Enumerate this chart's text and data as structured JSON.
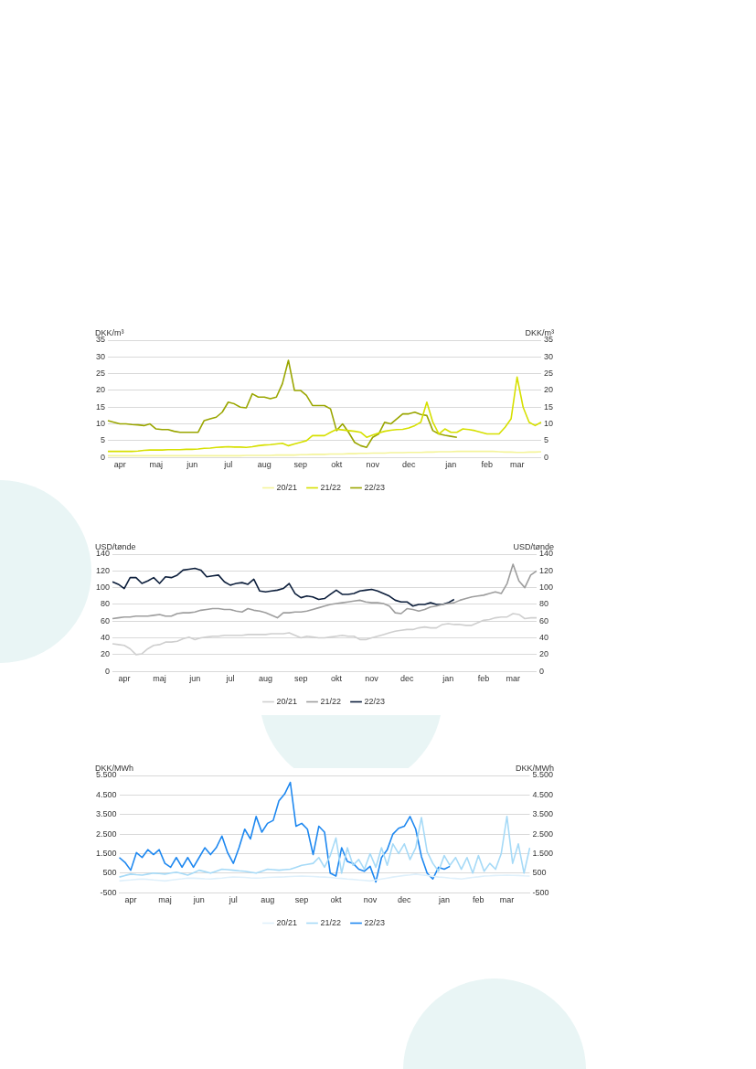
{
  "chart_data": [
    {
      "type": "line",
      "ylabel": "DKK/m³",
      "y2label": "DKK/m³",
      "categories": [
        null,
        null,
        "apr",
        null,
        null,
        null,
        null,
        null,
        "maj",
        null,
        null,
        null,
        null,
        null,
        "jun",
        null,
        null,
        null,
        null,
        null,
        "jul",
        null,
        null,
        null,
        null,
        null,
        "aug",
        null,
        null,
        null,
        null,
        null,
        "sep",
        null,
        null,
        null,
        null,
        null,
        "okt",
        null,
        null,
        null,
        null,
        null,
        "nov",
        null,
        null,
        null,
        null,
        null,
        "dec",
        null,
        null,
        null,
        null,
        null,
        null,
        "jan",
        null,
        null,
        null,
        null,
        null,
        "feb",
        null,
        null,
        null,
        null,
        "mar",
        null,
        null,
        null,
        null
      ],
      "ylim": [
        0,
        35
      ],
      "yticks": [
        0,
        5,
        10,
        15,
        20,
        25,
        30,
        35
      ],
      "y2lim": [
        0,
        35
      ],
      "y2ticks": [
        0,
        5,
        10,
        15,
        20,
        25,
        30,
        35
      ],
      "grid": "y",
      "legend": "bottom",
      "marker": "none",
      "line_style": "solid",
      "series": [
        {
          "name": "20/21",
          "color": "#f4f49a",
          "values": [
            0.5,
            0.5,
            0.5,
            0.5,
            0.5,
            0.5,
            0.5,
            0.5,
            0.5,
            0.5,
            0.5,
            0.5,
            0.5,
            0.5,
            0.5,
            0.5,
            0.5,
            0.5,
            0.5,
            0.5,
            0.5,
            0.5,
            0.5,
            0.6,
            0.6,
            0.6,
            0.6,
            0.6,
            0.7,
            0.7,
            0.7,
            0.7,
            0.8,
            0.8,
            0.9,
            0.9,
            0.9,
            1,
            1,
            1,
            1.1,
            1.1,
            1.2,
            1.2,
            1.3,
            1.3,
            1.3,
            1.4,
            1.4,
            1.4,
            1.5,
            1.5,
            1.5,
            1.6,
            1.6,
            1.7,
            1.7,
            1.7,
            1.8,
            1.8,
            1.8,
            1.8,
            1.8,
            1.8,
            1.8,
            1.7,
            1.6,
            1.6,
            1.5,
            1.5,
            1.6,
            1.6,
            1.7
          ]
        },
        {
          "name": "21/22",
          "color": "#d6e000",
          "values": [
            1.8,
            1.8,
            1.8,
            1.8,
            1.8,
            1.9,
            2.1,
            2.2,
            2.2,
            2.2,
            2.3,
            2.3,
            2.3,
            2.4,
            2.4,
            2.5,
            2.7,
            2.8,
            3,
            3.1,
            3.2,
            3.1,
            3.1,
            3,
            3.2,
            3.5,
            3.7,
            3.8,
            4,
            4.2,
            3.5,
            4,
            4.5,
            5,
            6.5,
            6.5,
            6.5,
            7.5,
            8.4,
            8.2,
            8,
            7.8,
            7.5,
            6,
            6.7,
            7.3,
            7.8,
            8.1,
            8.3,
            8.4,
            8.8,
            9.5,
            10.5,
            16.5,
            10.5,
            7,
            8.5,
            7.5,
            7.5,
            8.5,
            8.3,
            8,
            7.5,
            7,
            7,
            7,
            9,
            11.5,
            24,
            15,
            10.5,
            9.5,
            10.5
          ]
        },
        {
          "name": "22/23",
          "color": "#9aa600",
          "values": [
            11,
            10.5,
            10,
            10,
            9.8,
            9.7,
            9.5,
            10,
            8.5,
            8.3,
            8.3,
            7.8,
            7.5,
            7.5,
            7.5,
            7.5,
            11,
            11.5,
            12,
            13.5,
            16.5,
            16,
            15,
            14.8,
            19,
            18,
            18,
            17.5,
            18,
            22,
            29,
            20,
            20,
            18.5,
            15.5,
            15.5,
            15.5,
            14.5,
            8,
            10,
            7.5,
            4.5,
            3.5,
            3,
            6,
            7,
            10.5,
            10,
            11.5,
            13,
            13,
            13.5,
            12.8,
            12.5,
            8,
            7,
            6.6,
            6.3,
            6,
            null,
            null,
            null,
            null,
            null,
            null,
            null,
            null,
            null,
            null,
            null,
            null,
            null,
            null
          ]
        }
      ]
    },
    {
      "type": "line",
      "ylabel": "USD/tønde",
      "y2label": "USD/tønde",
      "categories": [
        null,
        null,
        "apr",
        null,
        null,
        null,
        null,
        null,
        "maj",
        null,
        null,
        null,
        null,
        null,
        "jun",
        null,
        null,
        null,
        null,
        null,
        "jul",
        null,
        null,
        null,
        null,
        null,
        "aug",
        null,
        null,
        null,
        null,
        null,
        "sep",
        null,
        null,
        null,
        null,
        null,
        "okt",
        null,
        null,
        null,
        null,
        null,
        "nov",
        null,
        null,
        null,
        null,
        null,
        "dec",
        null,
        null,
        null,
        null,
        null,
        null,
        "jan",
        null,
        null,
        null,
        null,
        null,
        "feb",
        null,
        null,
        null,
        null,
        "mar",
        null,
        null,
        null,
        null
      ],
      "ylim": [
        0,
        140
      ],
      "yticks": [
        0,
        20,
        40,
        60,
        80,
        100,
        120,
        140
      ],
      "y2lim": [
        0,
        140
      ],
      "y2ticks": [
        0,
        20,
        40,
        60,
        80,
        100,
        120,
        140
      ],
      "grid": "y",
      "legend": "bottom",
      "marker": "none",
      "line_style": "solid",
      "series": [
        {
          "name": "20/21",
          "color": "#cfcfcf",
          "values": [
            33,
            32,
            31,
            27,
            20,
            21,
            27,
            31,
            32,
            35,
            35,
            36,
            39,
            41,
            38,
            40,
            41,
            42,
            42,
            43,
            43,
            43,
            43,
            44,
            44,
            44,
            44,
            45,
            45,
            45,
            46,
            43,
            40,
            42,
            41,
            40,
            40,
            41,
            42,
            43,
            42,
            42,
            38,
            38,
            40,
            42,
            44,
            46,
            48,
            49,
            50,
            50,
            52,
            53,
            52,
            52,
            56,
            57,
            56,
            56,
            55,
            55,
            58,
            61,
            62,
            64,
            65,
            65,
            69,
            68,
            63,
            64,
            64
          ]
        },
        {
          "name": "21/22",
          "color": "#9e9e9e",
          "values": [
            63,
            64,
            65,
            65,
            66,
            66,
            66,
            67,
            68,
            66,
            66,
            69,
            70,
            70,
            71,
            73,
            74,
            75,
            75,
            74,
            74,
            72,
            71,
            75,
            73,
            72,
            70,
            67,
            64,
            70,
            70,
            71,
            71,
            72,
            74,
            76,
            78,
            80,
            81,
            82,
            83,
            84,
            85,
            83,
            82,
            82,
            81,
            78,
            70,
            69,
            75,
            74,
            72,
            74,
            77,
            78,
            80,
            81,
            82,
            85,
            87,
            89,
            90,
            91,
            93,
            95,
            93,
            105,
            128,
            108,
            100,
            115,
            120
          ]
        },
        {
          "name": "22/23",
          "color": "#0d1f3c",
          "values": [
            107,
            104,
            99,
            112,
            112,
            105,
            108,
            112,
            105,
            113,
            112,
            115,
            121,
            122,
            123,
            121,
            113,
            114,
            115,
            107,
            103,
            105,
            106,
            104,
            110,
            96,
            95,
            96,
            97,
            99,
            105,
            93,
            88,
            90,
            89,
            86,
            87,
            92,
            97,
            92,
            92,
            93,
            96,
            97,
            98,
            96,
            93,
            90,
            85,
            83,
            83,
            78,
            80,
            80,
            82,
            80,
            80,
            82,
            86,
            null,
            null,
            null,
            null,
            null,
            null,
            null,
            null,
            null,
            null,
            null,
            null,
            null,
            null
          ]
        }
      ]
    },
    {
      "type": "line",
      "ylabel": "DKK/MWh",
      "y2label": "DKK/MWh",
      "categories": [
        null,
        null,
        "apr",
        null,
        null,
        null,
        null,
        null,
        "maj",
        null,
        null,
        null,
        null,
        null,
        "jun",
        null,
        null,
        null,
        null,
        null,
        "jul",
        null,
        null,
        null,
        null,
        null,
        "aug",
        null,
        null,
        null,
        null,
        null,
        "sep",
        null,
        null,
        null,
        null,
        null,
        "okt",
        null,
        null,
        null,
        null,
        null,
        "nov",
        null,
        null,
        null,
        null,
        null,
        "dec",
        null,
        null,
        null,
        null,
        null,
        null,
        "jan",
        null,
        null,
        null,
        null,
        null,
        "feb",
        null,
        null,
        null,
        null,
        "mar",
        null,
        null,
        null,
        null
      ],
      "ylim": [
        -500,
        5500
      ],
      "yticks": [
        -500,
        500,
        {
          "value": 1500,
          "label": "1.500"
        },
        {
          "value": 2500,
          "label": "2.500"
        },
        {
          "value": 3500,
          "label": "3.500"
        },
        {
          "value": 4500,
          "label": "4.500"
        },
        {
          "value": 5500,
          "label": "5.500"
        }
      ],
      "y2lim": [
        -500,
        5500
      ],
      "y2ticks": [
        -500,
        500,
        {
          "value": 1500,
          "label": "1.500"
        },
        {
          "value": 2500,
          "label": "2.500"
        },
        {
          "value": 3500,
          "label": "3.500"
        },
        {
          "value": 4500,
          "label": "4.500"
        },
        {
          "value": 5500,
          "label": "5.500"
        }
      ],
      "grid": "y",
      "legend": "bottom",
      "marker": "none",
      "line_style": "solid",
      "series": [
        {
          "name": "20/21",
          "color": "#dff0fb",
          "values": [
            100,
            130,
            150,
            180,
            200,
            180,
            150,
            130,
            100,
            140,
            180,
            210,
            250,
            240,
            230,
            210,
            200,
            230,
            250,
            280,
            300,
            290,
            280,
            260,
            250,
            260,
            280,
            290,
            300,
            310,
            330,
            340,
            350,
            340,
            330,
            310,
            300,
            280,
            250,
            230,
            200,
            180,
            150,
            130,
            100,
            150,
            200,
            250,
            300,
            340,
            380,
            410,
            450,
            410,
            380,
            340,
            300,
            280,
            250,
            230,
            200,
            240,
            280,
            310,
            350,
            360,
            380,
            390,
            400,
            390,
            380,
            360,
            350
          ]
        },
        {
          "name": "21/22",
          "color": "#a6daf7",
          "values": [
            300,
            380,
            450,
            420,
            400,
            450,
            500,
            480,
            450,
            500,
            550,
            480,
            400,
            520,
            650,
            580,
            500,
            600,
            700,
            680,
            650,
            620,
            600,
            550,
            500,
            600,
            700,
            680,
            650,
            680,
            700,
            800,
            900,
            950,
            1000,
            1300,
            800,
            1400,
            2300,
            500,
            1800,
            900,
            1200,
            700,
            1500,
            800,
            1800,
            900,
            2000,
            1500,
            2000,
            1200,
            1800,
            3350,
            1600,
            1000,
            600,
            1400,
            900,
            1300,
            700,
            1300,
            500,
            1400,
            600,
            1000,
            700,
            1500,
            3400,
            1000,
            2000,
            500,
            1800
          ]
        },
        {
          "name": "22/23",
          "color": "#1e88f0",
          "values": [
            1300,
            1050,
            650,
            1550,
            1300,
            1700,
            1450,
            1700,
            1000,
            800,
            1300,
            800,
            1300,
            800,
            1300,
            1800,
            1450,
            1800,
            2400,
            1550,
            1000,
            1800,
            2750,
            2250,
            3400,
            2600,
            3050,
            3200,
            4200,
            4550,
            5150,
            2900,
            3050,
            2750,
            1450,
            2900,
            2600,
            500,
            350,
            1800,
            1100,
            1000,
            700,
            600,
            850,
            50,
            1300,
            1700,
            2500,
            2800,
            2900,
            3400,
            2750,
            1350,
            500,
            200,
            800,
            700,
            850,
            null,
            null,
            null,
            null,
            null,
            null,
            null,
            null,
            null,
            null,
            null,
            null,
            null,
            null
          ]
        }
      ]
    }
  ]
}
